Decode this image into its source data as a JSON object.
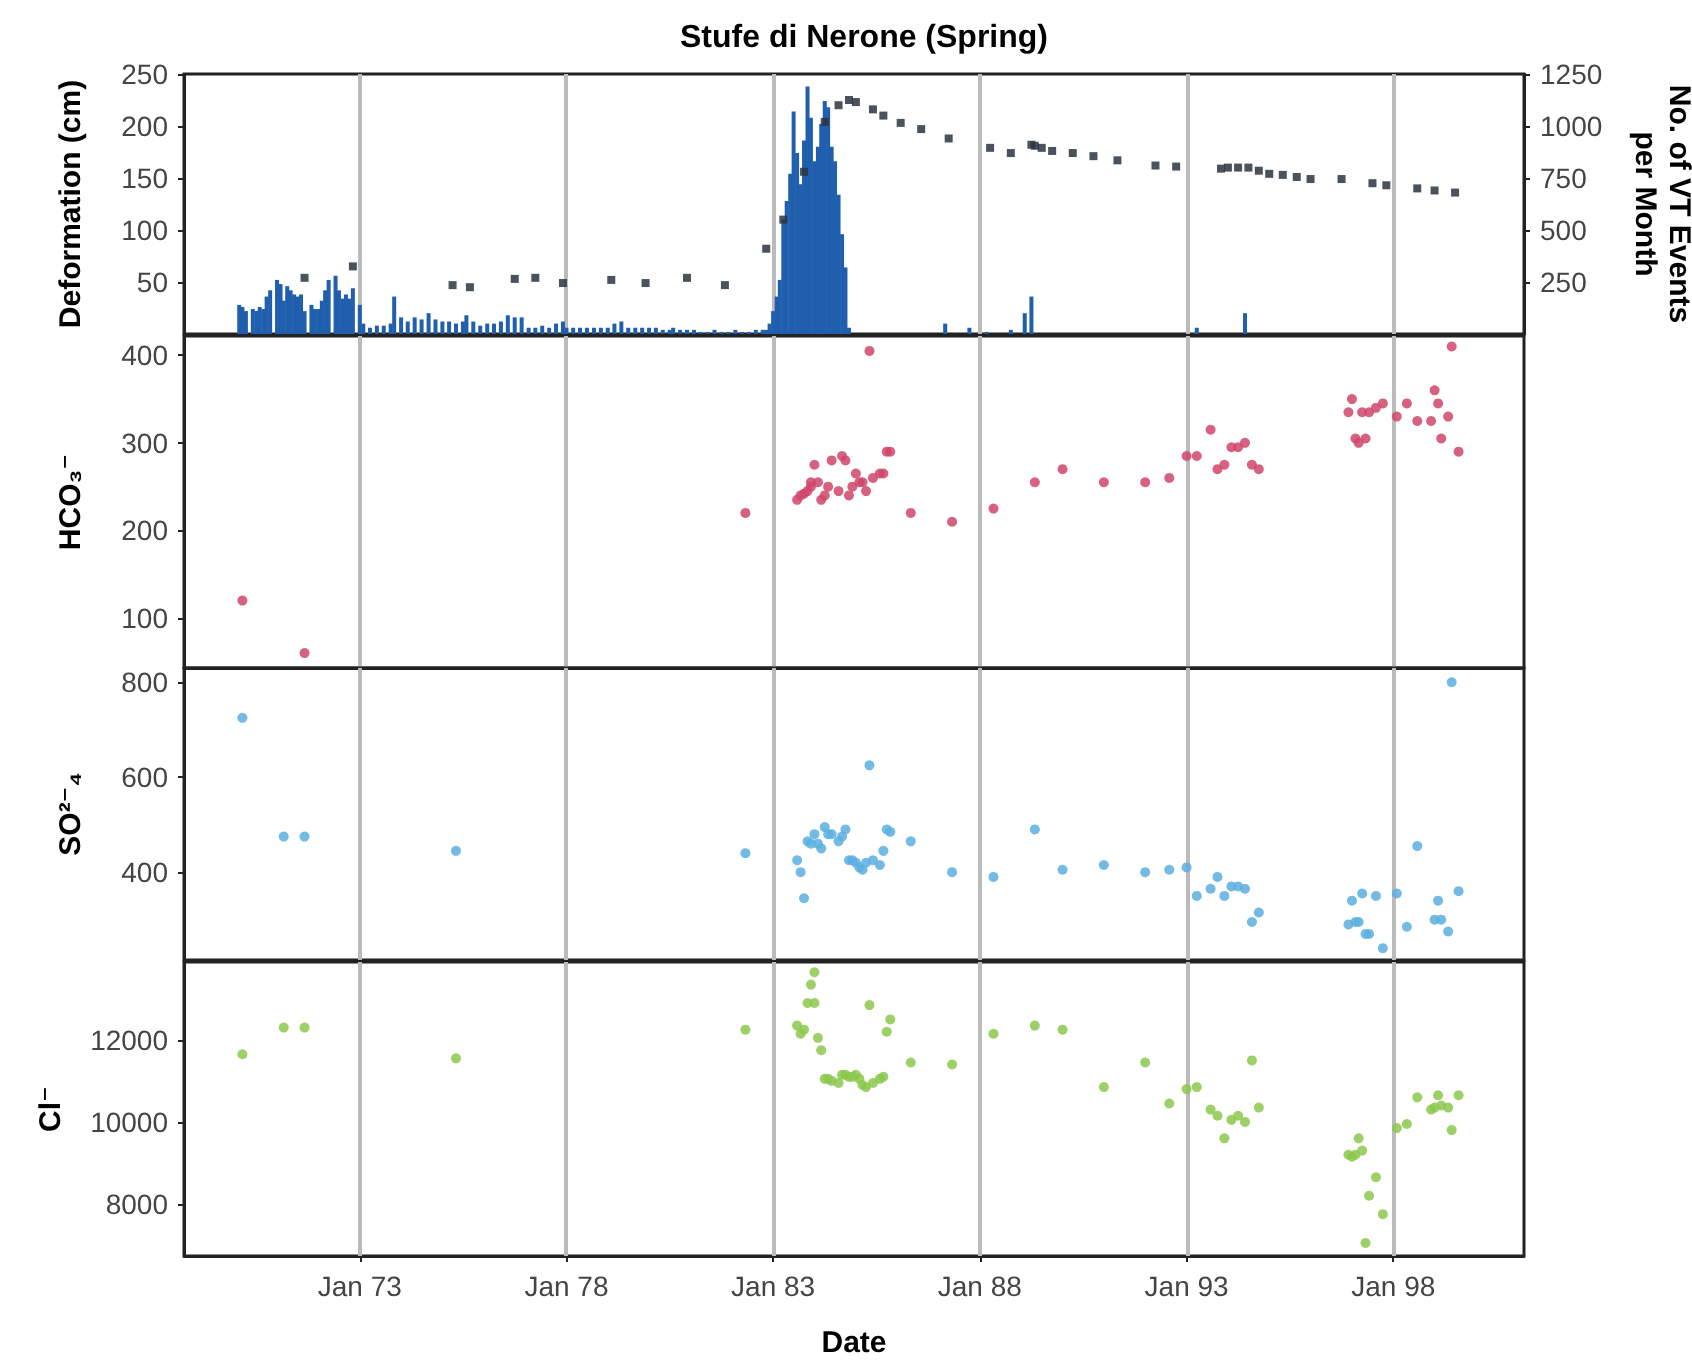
{
  "chart_data": [
    {
      "type": "bar",
      "title": "Stufe di Nerone (Spring)",
      "ylabel": "Deformation (cm)",
      "y2label": "No. of VT Events per Month",
      "xlim": [
        "1968-10",
        "2001-03"
      ],
      "xticks": [
        {
          "value": "1973-01",
          "label": null
        },
        {
          "value": "1978-01",
          "label": null
        },
        {
          "value": "1983-01",
          "label": null
        },
        {
          "value": "1988-01",
          "label": null
        },
        {
          "value": "1993-01",
          "label": null
        },
        {
          "value": "1998-01",
          "label": null
        }
      ],
      "ylim": [
        0,
        250
      ],
      "yticks": [
        50,
        100,
        150,
        200,
        250
      ],
      "y2lim": [
        0,
        1250
      ],
      "y2ticks": [
        250,
        500,
        750,
        1000,
        1250
      ],
      "grid": "x",
      "tick_labels": "y",
      "series": [
        {
          "type": "bar",
          "axis": "y2",
          "color": "#1f5fae",
          "x": [
            "1970-02",
            "1970-03",
            "1970-04",
            "1970-06",
            "1970-07",
            "1970-08",
            "1970-09",
            "1970-10",
            "1970-11",
            "1971-01",
            "1971-02",
            "1971-03",
            "1971-04",
            "1971-05",
            "1971-06",
            "1971-07",
            "1971-08",
            "1971-09",
            "1971-11",
            "1971-12",
            "1972-01",
            "1972-02",
            "1972-03",
            "1972-04",
            "1972-06",
            "1972-07",
            "1972-08",
            "1972-09",
            "1972-10",
            "1972-11",
            "1973-01",
            "1973-02",
            "1973-04",
            "1973-06",
            "1973-08",
            "1973-10",
            "1973-11",
            "1974-01",
            "1974-03",
            "1974-05",
            "1974-07",
            "1974-09",
            "1974-11",
            "1975-01",
            "1975-03",
            "1975-05",
            "1975-07",
            "1975-08",
            "1975-10",
            "1975-12",
            "1976-02",
            "1976-04",
            "1976-06",
            "1976-08",
            "1976-10",
            "1976-12",
            "1977-02",
            "1977-04",
            "1977-06",
            "1977-08",
            "1977-10",
            "1977-12",
            "1978-01",
            "1978-03",
            "1978-05",
            "1978-07",
            "1978-09",
            "1978-11",
            "1979-01",
            "1979-03",
            "1979-05",
            "1979-07",
            "1979-09",
            "1979-11",
            "1980-01",
            "1980-03",
            "1980-05",
            "1980-07",
            "1980-08",
            "1980-10",
            "1980-12",
            "1981-02",
            "1981-04",
            "1981-06",
            "1981-08",
            "1981-10",
            "1981-12",
            "1982-02",
            "1982-04",
            "1982-06",
            "1982-08",
            "1982-10",
            "1982-11",
            "1982-12",
            "1983-01",
            "1983-02",
            "1983-03",
            "1983-04",
            "1983-05",
            "1983-06",
            "1983-07",
            "1983-08",
            "1983-09",
            "1983-10",
            "1983-11",
            "1983-12",
            "1984-01",
            "1984-02",
            "1984-03",
            "1984-04",
            "1984-05",
            "1984-06",
            "1984-07",
            "1984-08",
            "1984-09",
            "1984-10",
            "1984-11",
            "1987-03",
            "1987-10",
            "1988-03",
            "1988-10",
            "1989-02",
            "1989-04",
            "1993-04",
            "1994-06"
          ],
          "values": [
            140,
            130,
            110,
            120,
            110,
            130,
            120,
            180,
            210,
            260,
            240,
            160,
            230,
            210,
            190,
            180,
            190,
            110,
            140,
            120,
            120,
            160,
            210,
            260,
            280,
            210,
            170,
            190,
            170,
            220,
            140,
            50,
            30,
            40,
            40,
            50,
            180,
            80,
            60,
            80,
            70,
            100,
            70,
            60,
            60,
            50,
            60,
            90,
            60,
            40,
            50,
            50,
            60,
            90,
            80,
            80,
            30,
            30,
            40,
            30,
            50,
            60,
            30,
            30,
            30,
            30,
            30,
            30,
            30,
            50,
            60,
            30,
            30,
            30,
            30,
            30,
            20,
            20,
            30,
            20,
            20,
            20,
            10,
            10,
            20,
            10,
            10,
            20,
            10,
            10,
            20,
            20,
            20,
            50,
            110,
            180,
            260,
            550,
            640,
            770,
            1070,
            870,
            720,
            930,
            1190,
            1040,
            830,
            900,
            1010,
            1120,
            1090,
            900,
            830,
            670,
            480,
            320,
            30,
            50,
            30,
            10,
            20,
            100,
            180,
            30,
            100
          ]
        },
        {
          "type": "scatter",
          "marker": "square",
          "color": "#2b3440",
          "x": [
            "1971-09",
            "1972-11",
            "1975-04",
            "1975-09",
            "1976-10",
            "1977-04",
            "1977-12",
            "1979-02",
            "1979-12",
            "1980-12",
            "1981-11",
            "1982-11",
            "1983-04",
            "1983-10",
            "1984-04",
            "1984-08",
            "1984-11",
            "1985-01",
            "1985-06",
            "1985-09",
            "1986-02",
            "1986-08",
            "1987-04",
            "1988-04",
            "1988-10",
            "1989-04",
            "1989-05",
            "1989-07",
            "1989-10",
            "1990-04",
            "1990-10",
            "1991-05",
            "1992-04",
            "1992-10",
            "1993-11",
            "1994-01",
            "1994-04",
            "1994-07",
            "1994-10",
            "1995-01",
            "1995-05",
            "1995-09",
            "1996-01",
            "1996-10",
            "1997-07",
            "1997-11",
            "1998-08",
            "1999-01",
            "1999-07"
          ],
          "values": [
            54,
            65,
            47,
            45,
            53,
            54,
            49,
            52,
            49,
            54,
            47,
            82,
            110,
            156,
            204,
            220,
            225,
            223,
            216,
            210,
            203,
            197,
            188,
            179,
            174,
            182,
            181,
            179,
            176,
            174,
            171,
            167,
            162,
            161,
            159,
            160,
            160,
            160,
            157,
            154,
            153,
            151,
            149,
            149,
            145,
            143,
            140,
            138,
            136
          ]
        }
      ]
    },
    {
      "type": "scatter",
      "ylabel": "HCO₃⁻",
      "xlim": [
        "1968-10",
        "2001-03"
      ],
      "xticks": [
        {
          "value": "1973-01",
          "label": null
        },
        {
          "value": "1978-01",
          "label": null
        },
        {
          "value": "1983-01",
          "label": null
        },
        {
          "value": "1988-01",
          "label": null
        },
        {
          "value": "1993-01",
          "label": null
        },
        {
          "value": "1998-01",
          "label": null
        }
      ],
      "ylim": [
        43,
        422
      ],
      "yticks": [
        100,
        200,
        300,
        400
      ],
      "grid": "x",
      "tick_labels": "y",
      "marker": "circle",
      "series": [
        {
          "color": "#d0456a",
          "x": [
            "1970-03",
            "1971-09",
            "1982-05",
            "1983-08",
            "1983-09",
            "1983-10",
            "1983-11",
            "1983-12",
            "1983-12",
            "1984-02",
            "1984-01",
            "1984-03",
            "1984-04",
            "1984-05",
            "1984-06",
            "1984-08",
            "1984-09",
            "1984-10",
            "1984-11",
            "1984-12",
            "1985-01",
            "1985-02",
            "1985-03",
            "1985-04",
            "1985-05",
            "1985-06",
            "1985-08",
            "1985-09",
            "1985-10",
            "1985-11",
            "1986-05",
            "1987-05",
            "1988-05",
            "1989-05",
            "1990-01",
            "1991-01",
            "1992-01",
            "1992-08",
            "1993-01",
            "1993-04",
            "1993-08",
            "1993-10",
            "1993-12",
            "1994-02",
            "1994-04",
            "1994-06",
            "1994-08",
            "1994-10",
            "1996-12",
            "1997-01",
            "1997-02",
            "1997-03",
            "1997-04",
            "1997-05",
            "1997-06",
            "1997-08",
            "1997-10",
            "1998-02",
            "1998-05",
            "1998-08",
            "1998-12",
            "1999-01",
            "1999-02",
            "1999-03",
            "1999-05",
            "1999-06",
            "1999-08"
          ],
          "values": [
            120,
            60,
            220,
            235,
            240,
            242,
            245,
            250,
            255,
            255,
            275,
            235,
            240,
            250,
            280,
            245,
            285,
            280,
            240,
            250,
            265,
            255,
            255,
            245,
            405,
            260,
            265,
            265,
            290,
            290,
            220,
            210,
            225,
            255,
            270,
            255,
            255,
            260,
            285,
            285,
            315,
            270,
            275,
            295,
            295,
            300,
            275,
            270,
            335,
            350,
            305,
            300,
            335,
            305,
            335,
            340,
            345,
            330,
            345,
            325,
            325,
            360,
            345,
            305,
            330,
            410,
            290
          ]
        }
      ]
    },
    {
      "type": "scatter",
      "ylabel": "SO²⁻₄",
      "xlim": [
        "1968-10",
        "2001-03"
      ],
      "xticks": [
        {
          "value": "1973-01",
          "label": null
        },
        {
          "value": "1978-01",
          "label": null
        },
        {
          "value": "1983-01",
          "label": null
        },
        {
          "value": "1988-01",
          "label": null
        },
        {
          "value": "1993-01",
          "label": null
        },
        {
          "value": "1998-01",
          "label": null
        }
      ],
      "ylim": [
        215,
        830
      ],
      "yticks": [
        400,
        600,
        800
      ],
      "grid": "x",
      "tick_labels": "y",
      "marker": "circle",
      "series": [
        {
          "color": "#5aafe0",
          "x": [
            "1970-03",
            "1971-03",
            "1971-09",
            "1975-05",
            "1982-05",
            "1983-08",
            "1983-09",
            "1983-10",
            "1983-11",
            "1983-12",
            "1984-01",
            "1984-02",
            "1984-03",
            "1984-04",
            "1984-05",
            "1984-06",
            "1984-08",
            "1984-09",
            "1984-10",
            "1984-11",
            "1984-12",
            "1985-01",
            "1985-02",
            "1985-03",
            "1985-04",
            "1985-05",
            "1985-06",
            "1985-08",
            "1985-09",
            "1985-10",
            "1985-11",
            "1986-05",
            "1987-05",
            "1988-05",
            "1989-05",
            "1990-01",
            "1991-01",
            "1992-01",
            "1992-08",
            "1993-01",
            "1993-04",
            "1993-08",
            "1993-10",
            "1993-12",
            "1994-02",
            "1994-04",
            "1994-06",
            "1994-08",
            "1994-10",
            "1996-12",
            "1997-01",
            "1997-02",
            "1997-03",
            "1997-04",
            "1997-05",
            "1997-06",
            "1997-08",
            "1997-10",
            "1998-02",
            "1998-05",
            "1998-08",
            "1999-01",
            "1999-02",
            "1999-03",
            "1999-05",
            "1999-06",
            "1999-08"
          ],
          "values": [
            725,
            475,
            475,
            445,
            440,
            425,
            400,
            345,
            465,
            460,
            480,
            460,
            450,
            495,
            480,
            480,
            465,
            475,
            490,
            425,
            425,
            420,
            410,
            405,
            420,
            625,
            425,
            415,
            445,
            490,
            485,
            465,
            400,
            390,
            490,
            405,
            415,
            400,
            405,
            410,
            350,
            365,
            390,
            350,
            370,
            370,
            365,
            295,
            315,
            290,
            340,
            295,
            295,
            355,
            270,
            270,
            350,
            240,
            355,
            285,
            455,
            300,
            340,
            300,
            275,
            800,
            360
          ]
        }
      ]
    },
    {
      "type": "scatter",
      "ylabel": "Cl⁻",
      "xlabel": "Date",
      "xlim": [
        "1968-10",
        "2001-03"
      ],
      "xticks": [
        {
          "value": "1973-01",
          "label": "Jan 73"
        },
        {
          "value": "1978-01",
          "label": "Jan 78"
        },
        {
          "value": "1983-01",
          "label": "Jan 83"
        },
        {
          "value": "1988-01",
          "label": "Jan 88"
        },
        {
          "value": "1993-01",
          "label": "Jan 93"
        },
        {
          "value": "1998-01",
          "label": "Jan 98"
        }
      ],
      "ylim": [
        6730,
        13900
      ],
      "yticks": [
        8000,
        10000,
        12000
      ],
      "grid": "x",
      "marker": "circle",
      "series": [
        {
          "color": "#8cc84b",
          "x": [
            "1970-03",
            "1971-03",
            "1971-09",
            "1975-05",
            "1982-05",
            "1983-08",
            "1983-09",
            "1983-10",
            "1983-11",
            "1983-12",
            "1984-01",
            "1984-01",
            "1984-02",
            "1984-03",
            "1984-04",
            "1984-05",
            "1984-06",
            "1984-08",
            "1984-09",
            "1984-10",
            "1984-11",
            "1984-12",
            "1985-01",
            "1985-02",
            "1985-03",
            "1985-04",
            "1985-05",
            "1985-06",
            "1985-08",
            "1985-09",
            "1985-10",
            "1985-11",
            "1986-05",
            "1987-05",
            "1988-05",
            "1989-05",
            "1990-01",
            "1991-01",
            "1992-01",
            "1992-08",
            "1993-01",
            "1993-04",
            "1993-08",
            "1993-10",
            "1993-12",
            "1994-02",
            "1994-04",
            "1994-06",
            "1994-08",
            "1994-10",
            "1996-12",
            "1997-01",
            "1997-02",
            "1997-03",
            "1997-04",
            "1997-05",
            "1997-06",
            "1997-08",
            "1997-10",
            "1998-02",
            "1998-05",
            "1998-08",
            "1998-12",
            "1999-01",
            "1999-02",
            "1999-03",
            "1999-05",
            "1999-06",
            "1999-08"
          ],
          "values": [
            11650,
            12300,
            12300,
            11550,
            12250,
            12350,
            12150,
            12250,
            12900,
            13350,
            13650,
            12900,
            12050,
            11750,
            11050,
            11050,
            11000,
            10950,
            11150,
            11150,
            11100,
            11100,
            11150,
            11050,
            10900,
            10850,
            12850,
            10950,
            11050,
            11100,
            12200,
            12500,
            11450,
            11400,
            12150,
            12350,
            12250,
            10850,
            11450,
            10450,
            10800,
            10850,
            10300,
            10150,
            9600,
            10050,
            10150,
            10000,
            11500,
            10350,
            9200,
            9150,
            9200,
            9600,
            9300,
            7050,
            8200,
            8650,
            7750,
            9850,
            9950,
            10600,
            10300,
            10350,
            10650,
            10400,
            10350,
            9800,
            10650
          ]
        }
      ]
    }
  ]
}
